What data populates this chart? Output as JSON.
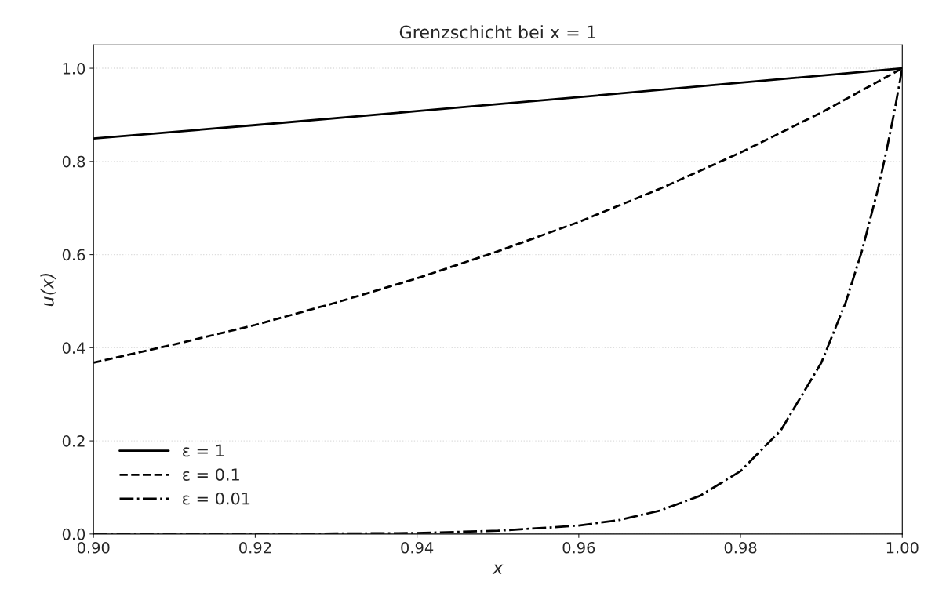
{
  "chart_data": {
    "type": "line",
    "title": "Grenzschicht bei x = 1",
    "xlabel": "x",
    "ylabel": "u(x)",
    "xlim": [
      0.9,
      1.0
    ],
    "ylim": [
      0,
      1.05
    ],
    "xticks": [
      {
        "value": 0.9,
        "label": "0.90"
      },
      {
        "value": 0.92,
        "label": "0.92"
      },
      {
        "value": 0.94,
        "label": "0.94"
      },
      {
        "value": 0.96,
        "label": "0.96"
      },
      {
        "value": 0.98,
        "label": "0.98"
      },
      {
        "value": 1.0,
        "label": "1.00"
      }
    ],
    "yticks": [
      {
        "value": 0,
        "label": "0.0"
      },
      {
        "value": 0.2,
        "label": "0.2"
      },
      {
        "value": 0.4,
        "label": "0.4"
      },
      {
        "value": 0.6,
        "label": "0.6"
      },
      {
        "value": 0.8,
        "label": "0.8"
      },
      {
        "value": 1.0,
        "label": "1.0"
      }
    ],
    "grid": "y",
    "legend": "bottom left",
    "marker": "none",
    "series": [
      {
        "name": "ε = 1",
        "color": "#000000",
        "line_style": "solid",
        "x": [
          0.9,
          0.92,
          0.94,
          0.96,
          0.98,
          1.0
        ],
        "values": [
          0.849,
          0.878,
          0.908,
          0.938,
          0.969,
          1.0
        ]
      },
      {
        "name": "ε = 0.1",
        "color": "#000000",
        "line_style": "dashed",
        "x": [
          0.9,
          0.91,
          0.92,
          0.93,
          0.94,
          0.95,
          0.96,
          0.97,
          0.98,
          0.99,
          1.0
        ],
        "values": [
          0.368,
          0.407,
          0.449,
          0.497,
          0.549,
          0.607,
          0.67,
          0.741,
          0.819,
          0.905,
          1.0
        ]
      },
      {
        "name": "ε = 0.01",
        "color": "#000000",
        "line_style": "dashdot",
        "x": [
          0.9,
          0.93,
          0.94,
          0.95,
          0.96,
          0.965,
          0.97,
          0.975,
          0.98,
          0.985,
          0.99,
          0.993,
          0.995,
          0.997,
          0.998,
          0.999,
          1.0
        ],
        "values": [
          0.0,
          0.001,
          0.002,
          0.007,
          0.018,
          0.03,
          0.05,
          0.082,
          0.135,
          0.223,
          0.368,
          0.497,
          0.607,
          0.741,
          0.819,
          0.905,
          1.0
        ]
      }
    ]
  }
}
